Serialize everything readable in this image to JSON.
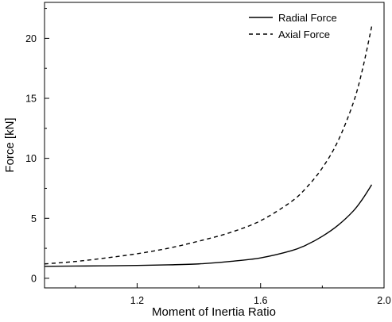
{
  "chart_data": {
    "type": "line",
    "title": "",
    "xlabel": "Moment of Inertia Ratio",
    "ylabel": "Force [kN]",
    "xlim": [
      0.9,
      2.0
    ],
    "ylim": [
      -0.8,
      23
    ],
    "x_ticks": [
      1.2,
      1.6,
      2.0
    ],
    "x_tick_labels": [
      "1.2",
      "1.6",
      "2.0"
    ],
    "y_ticks": [
      0,
      5,
      10,
      15,
      20
    ],
    "y_tick_labels": [
      "0",
      "5",
      "10",
      "15",
      "20"
    ],
    "grid": false,
    "legend_position": "top-right",
    "x": [
      0.9,
      1.0,
      1.1,
      1.2,
      1.3,
      1.4,
      1.5,
      1.6,
      1.7,
      1.75,
      1.8,
      1.85,
      1.9,
      1.93,
      1.96
    ],
    "series": [
      {
        "name": "Radial Force",
        "style": "solid",
        "values": [
          1.0,
          1.02,
          1.04,
          1.07,
          1.12,
          1.2,
          1.4,
          1.7,
          2.3,
          2.8,
          3.5,
          4.4,
          5.6,
          6.6,
          7.8
        ]
      },
      {
        "name": "Axial Force",
        "style": "dashed",
        "values": [
          1.2,
          1.4,
          1.7,
          2.05,
          2.5,
          3.1,
          3.8,
          4.8,
          6.4,
          7.6,
          9.2,
          11.4,
          14.6,
          17.4,
          21.0
        ]
      }
    ]
  }
}
